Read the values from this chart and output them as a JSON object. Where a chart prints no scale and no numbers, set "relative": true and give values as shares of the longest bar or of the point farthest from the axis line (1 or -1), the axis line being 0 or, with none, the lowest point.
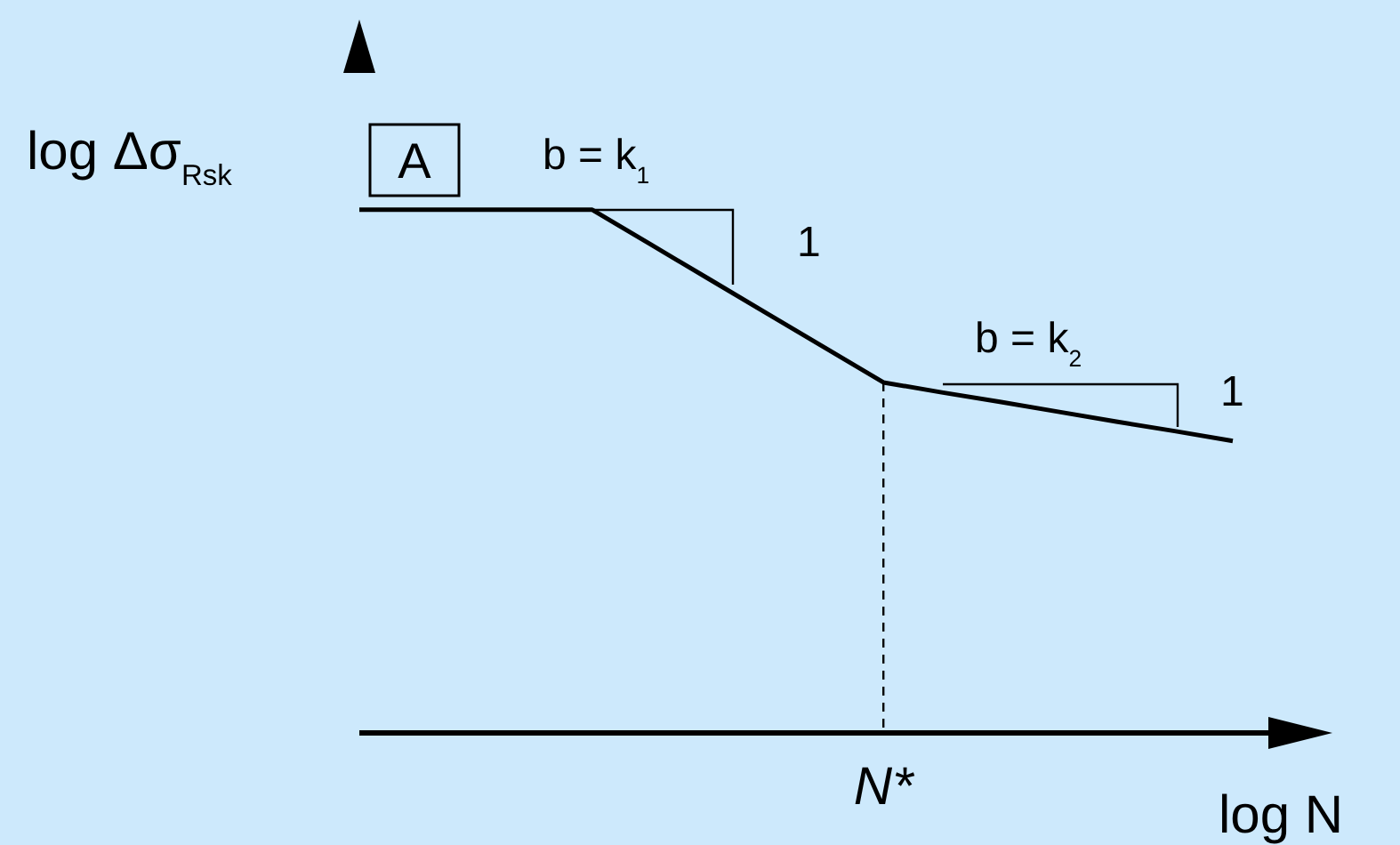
{
  "chart_data": {
    "type": "line",
    "relative": true,
    "ylabel": "log Δσ$_{Rsk}$",
    "xlabel": "log N",
    "categories": [
      null,
      null,
      null,
      null,
      null,
      null,
      null,
      null,
      null,
      null,
      null,
      null,
      null,
      null,
      null,
      null
    ],
    "series": [
      {
        "color": "#000000",
        "values": [
          1,
          1,
          1,
          1,
          1,
          0.934,
          0.868,
          0.802,
          0.736,
          0.67,
          0.651,
          0.633,
          0.614,
          0.595,
          0.577,
          0.558
        ]
      }
    ],
    "annotations": [
      "A",
      "b = k$_{1}$",
      "1",
      "b = k$_{2}$",
      "1",
      "N*"
    ],
    "legend": false,
    "grid": false,
    "marker": "none",
    "line_style": "solid"
  }
}
